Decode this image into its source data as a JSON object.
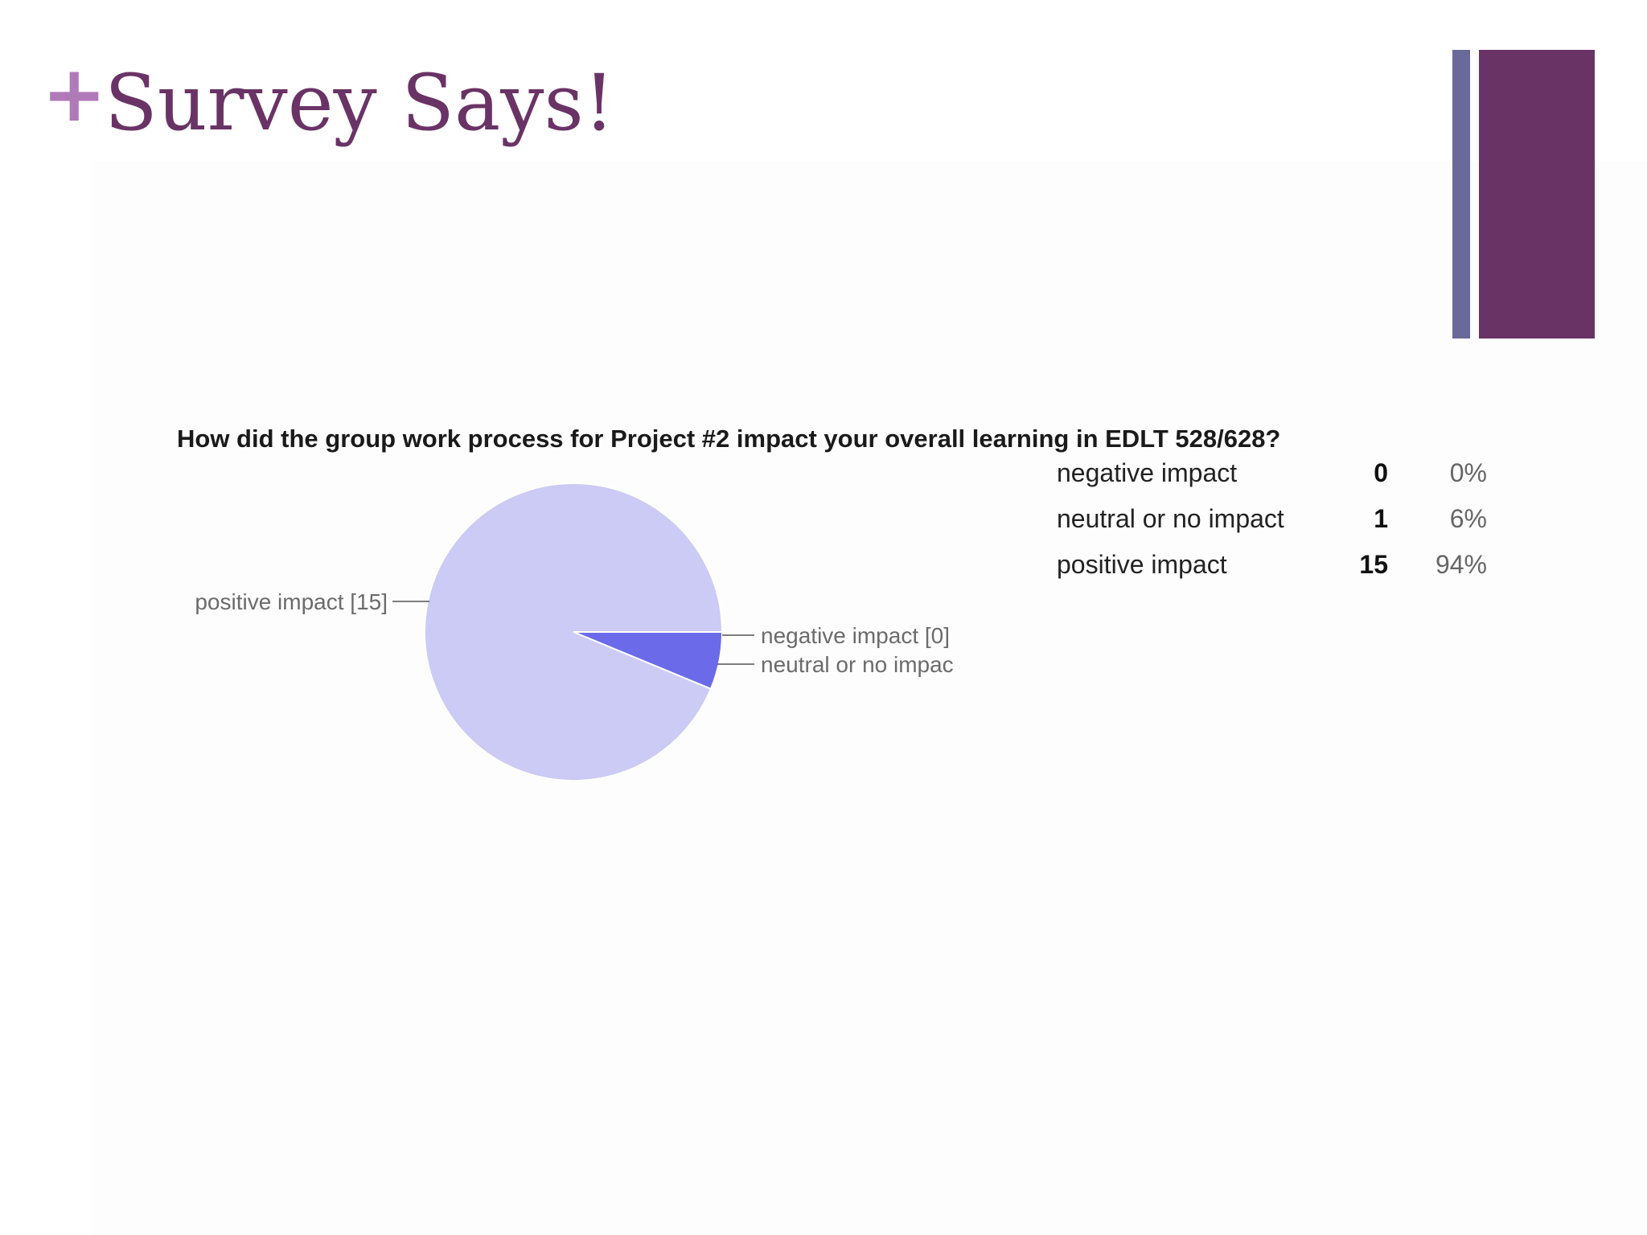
{
  "slide": {
    "plus_glyph": "+",
    "title": "Survey Says!",
    "colors": {
      "title": "#6a3366",
      "plus": "#b07ab8",
      "bar_thin": "#6a6a9a",
      "bar_wide": "#6a3366"
    }
  },
  "chart_data": {
    "type": "pie",
    "title": "How did the group work process for Project #2 impact your overall learning in EDLT 528/628?",
    "slices": [
      {
        "label": "negative impact",
        "value": 0,
        "percent": "0%",
        "color": "#6b6bea",
        "callout": "negative impact [0]"
      },
      {
        "label": "neutral or no impact",
        "value": 1,
        "percent": "6%",
        "color": "#6b6bea",
        "callout": "neutral or no impac"
      },
      {
        "label": "positive impact",
        "value": 15,
        "percent": "94%",
        "color": "#cbcbf5",
        "callout": "positive impact [15]"
      }
    ],
    "table_placement": "right"
  }
}
